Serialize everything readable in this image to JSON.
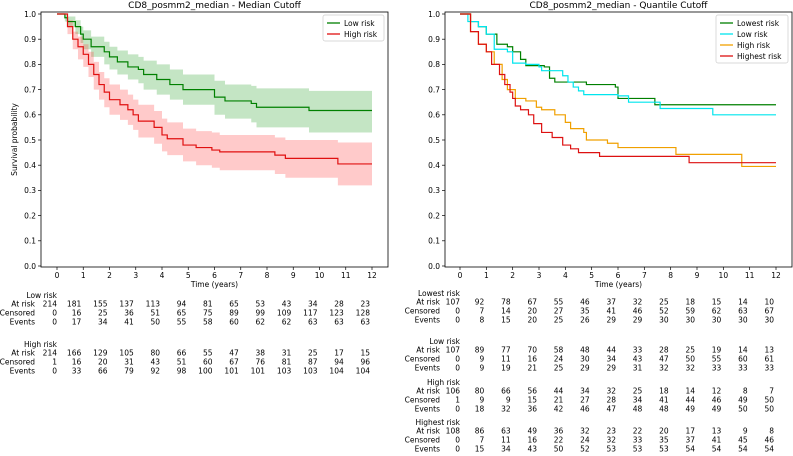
{
  "chart_data": [
    {
      "type": "line",
      "subtype": "kaplan-meier step",
      "title": "CD8_posmm2_median - Median Cutoff",
      "xlabel": "Time (years)",
      "ylabel": "Survival probability",
      "xlim": [
        0,
        12
      ],
      "ylim": [
        0,
        1
      ],
      "xticks": [
        "0",
        "1",
        "2",
        "3",
        "4",
        "5",
        "6",
        "7",
        "8",
        "9",
        "10",
        "11",
        "12"
      ],
      "yticks": [
        "0.0",
        "0.1",
        "0.2",
        "0.3",
        "0.4",
        "0.5",
        "0.6",
        "0.7",
        "0.8",
        "0.9",
        "1.0"
      ],
      "legend_position": "top-right",
      "series": [
        {
          "name": "Low risk",
          "color": "#008000",
          "ci_color": "#2ca02c",
          "steps": [
            [
              0,
              1,
              1,
              1
            ],
            [
              0.3,
              0.985,
              0.97,
              1.0
            ],
            [
              0.4,
              0.97,
              0.95,
              0.99
            ],
            [
              0.7,
              0.95,
              0.92,
              0.975
            ],
            [
              0.9,
              0.92,
              0.885,
              0.95
            ],
            [
              1.0,
              0.9,
              0.86,
              0.935
            ],
            [
              1.3,
              0.87,
              0.83,
              0.91
            ],
            [
              1.8,
              0.85,
              0.8,
              0.89
            ],
            [
              2.0,
              0.83,
              0.78,
              0.87
            ],
            [
              2.3,
              0.81,
              0.76,
              0.855
            ],
            [
              2.7,
              0.79,
              0.74,
              0.84
            ],
            [
              3.1,
              0.78,
              0.725,
              0.83
            ],
            [
              3.3,
              0.76,
              0.7,
              0.815
            ],
            [
              3.8,
              0.74,
              0.68,
              0.8
            ],
            [
              4.3,
              0.72,
              0.66,
              0.78
            ],
            [
              4.8,
              0.7,
              0.64,
              0.76
            ],
            [
              6.0,
              0.67,
              0.6,
              0.735
            ],
            [
              6.4,
              0.655,
              0.585,
              0.72
            ],
            [
              7.4,
              0.645,
              0.57,
              0.715
            ],
            [
              7.6,
              0.63,
              0.55,
              0.705
            ],
            [
              9.6,
              0.617,
              0.53,
              0.695
            ],
            [
              12,
              0.617,
              0.53,
              0.695
            ]
          ]
        },
        {
          "name": "High risk",
          "color": "#e01010",
          "ci_color": "#ff4040",
          "steps": [
            [
              0,
              1,
              1,
              1
            ],
            [
              0.4,
              0.95,
              0.92,
              0.975
            ],
            [
              0.6,
              0.9,
              0.86,
              0.93
            ],
            [
              0.8,
              0.87,
              0.82,
              0.91
            ],
            [
              1.0,
              0.84,
              0.79,
              0.88
            ],
            [
              1.2,
              0.8,
              0.75,
              0.85
            ],
            [
              1.4,
              0.76,
              0.7,
              0.81
            ],
            [
              1.6,
              0.72,
              0.66,
              0.77
            ],
            [
              1.8,
              0.69,
              0.63,
              0.745
            ],
            [
              2.0,
              0.66,
              0.6,
              0.72
            ],
            [
              2.4,
              0.64,
              0.58,
              0.7
            ],
            [
              2.7,
              0.62,
              0.56,
              0.68
            ],
            [
              2.9,
              0.6,
              0.54,
              0.66
            ],
            [
              3.1,
              0.575,
              0.51,
              0.64
            ],
            [
              3.7,
              0.55,
              0.485,
              0.615
            ],
            [
              4.0,
              0.52,
              0.455,
              0.585
            ],
            [
              4.2,
              0.505,
              0.44,
              0.57
            ],
            [
              4.8,
              0.48,
              0.415,
              0.545
            ],
            [
              5.3,
              0.47,
              0.4,
              0.535
            ],
            [
              5.9,
              0.46,
              0.39,
              0.53
            ],
            [
              6.2,
              0.453,
              0.38,
              0.52
            ],
            [
              8.3,
              0.44,
              0.365,
              0.51
            ],
            [
              8.7,
              0.427,
              0.35,
              0.5
            ],
            [
              10.7,
              0.405,
              0.32,
              0.49
            ],
            [
              12,
              0.405,
              0.32,
              0.49
            ]
          ]
        }
      ],
      "risk_table": {
        "row_labels": [
          "At risk",
          "Censored",
          "Events"
        ],
        "groups": [
          {
            "name": "Low risk",
            "at_risk": [
              214,
              181,
              155,
              137,
              113,
              94,
              81,
              65,
              53,
              43,
              34,
              28,
              23
            ],
            "censored": [
              0,
              16,
              25,
              36,
              51,
              65,
              75,
              89,
              99,
              109,
              117,
              123,
              128
            ],
            "events": [
              0,
              17,
              34,
              41,
              50,
              55,
              58,
              60,
              62,
              62,
              63,
              63,
              63
            ]
          },
          {
            "name": "High risk",
            "at_risk": [
              214,
              166,
              129,
              105,
              80,
              66,
              55,
              47,
              38,
              31,
              25,
              17,
              15
            ],
            "censored": [
              1,
              16,
              20,
              31,
              43,
              51,
              60,
              67,
              76,
              81,
              87,
              94,
              96
            ],
            "events": [
              0,
              33,
              66,
              79,
              92,
              98,
              100,
              101,
              101,
              103,
              103,
              104,
              104
            ]
          }
        ]
      }
    },
    {
      "type": "line",
      "subtype": "kaplan-meier step",
      "title": "CD8_posmm2_median - Quantile Cutoff",
      "xlabel": "Time (years)",
      "ylabel": "",
      "xlim": [
        0,
        12
      ],
      "ylim": [
        0,
        1
      ],
      "xticks": [
        "0",
        "1",
        "2",
        "3",
        "4",
        "5",
        "6",
        "7",
        "8",
        "9",
        "10",
        "11",
        "12"
      ],
      "yticks": [
        "0.0",
        "0.1",
        "0.2",
        "0.3",
        "0.4",
        "0.5",
        "0.6",
        "0.7",
        "0.8",
        "0.9",
        "1.0"
      ],
      "legend_position": "top-right",
      "series": [
        {
          "name": "Lowest risk",
          "color": "#008000",
          "steps": [
            [
              0,
              1
            ],
            [
              0.4,
              0.97
            ],
            [
              0.5,
              0.97
            ],
            [
              0.7,
              0.95
            ],
            [
              1.0,
              0.92
            ],
            [
              1.4,
              0.88
            ],
            [
              1.8,
              0.87
            ],
            [
              2.0,
              0.85
            ],
            [
              2.3,
              0.82
            ],
            [
              2.5,
              0.795
            ],
            [
              3.2,
              0.79
            ],
            [
              3.4,
              0.745
            ],
            [
              3.6,
              0.73
            ],
            [
              4.8,
              0.72
            ],
            [
              5.9,
              0.71
            ],
            [
              6.0,
              0.665
            ],
            [
              7.4,
              0.64
            ],
            [
              12,
              0.64
            ]
          ]
        },
        {
          "name": "Low risk",
          "color": "#00e5ee",
          "steps": [
            [
              0,
              1
            ],
            [
              0.3,
              0.97
            ],
            [
              0.7,
              0.95
            ],
            [
              1.0,
              0.92
            ],
            [
              1.3,
              0.86
            ],
            [
              1.8,
              0.85
            ],
            [
              2.0,
              0.805
            ],
            [
              2.5,
              0.8
            ],
            [
              3.0,
              0.79
            ],
            [
              3.1,
              0.775
            ],
            [
              3.9,
              0.755
            ],
            [
              4.1,
              0.73
            ],
            [
              4.3,
              0.71
            ],
            [
              4.5,
              0.695
            ],
            [
              4.7,
              0.68
            ],
            [
              6.0,
              0.675
            ],
            [
              6.4,
              0.65
            ],
            [
              7.6,
              0.625
            ],
            [
              9.6,
              0.6
            ],
            [
              12,
              0.6
            ]
          ]
        },
        {
          "name": "High risk",
          "color": "#f0a000",
          "steps": [
            [
              0,
              1
            ],
            [
              0.4,
              0.93
            ],
            [
              0.7,
              0.88
            ],
            [
              1.0,
              0.85
            ],
            [
              1.3,
              0.8
            ],
            [
              1.6,
              0.74
            ],
            [
              1.8,
              0.7
            ],
            [
              2.1,
              0.665
            ],
            [
              2.5,
              0.655
            ],
            [
              2.9,
              0.63
            ],
            [
              3.1,
              0.62
            ],
            [
              3.6,
              0.6
            ],
            [
              4.0,
              0.57
            ],
            [
              4.2,
              0.545
            ],
            [
              4.7,
              0.53
            ],
            [
              4.8,
              0.5
            ],
            [
              5.6,
              0.487
            ],
            [
              6.0,
              0.47
            ],
            [
              8.2,
              0.443
            ],
            [
              10.7,
              0.395
            ],
            [
              12,
              0.395
            ]
          ]
        },
        {
          "name": "Highest risk",
          "color": "#dd1111",
          "steps": [
            [
              0,
              1
            ],
            [
              0.4,
              0.93
            ],
            [
              0.7,
              0.88
            ],
            [
              1.0,
              0.85
            ],
            [
              1.2,
              0.8
            ],
            [
              1.5,
              0.76
            ],
            [
              1.7,
              0.72
            ],
            [
              1.9,
              0.69
            ],
            [
              2.0,
              0.665
            ],
            [
              2.1,
              0.635
            ],
            [
              2.3,
              0.62
            ],
            [
              2.6,
              0.6
            ],
            [
              2.8,
              0.565
            ],
            [
              3.1,
              0.53
            ],
            [
              3.5,
              0.51
            ],
            [
              3.9,
              0.48
            ],
            [
              4.2,
              0.465
            ],
            [
              4.5,
              0.45
            ],
            [
              5.3,
              0.435
            ],
            [
              8.7,
              0.41
            ],
            [
              12,
              0.41
            ]
          ]
        }
      ],
      "risk_table": {
        "row_labels": [
          "At risk",
          "Censored",
          "Events"
        ],
        "groups": [
          {
            "name": "Lowest risk",
            "at_risk": [
              107,
              92,
              78,
              67,
              55,
              46,
              37,
              32,
              25,
              18,
              15,
              14,
              10
            ],
            "censored": [
              0,
              7,
              14,
              20,
              27,
              35,
              41,
              46,
              52,
              59,
              62,
              63,
              67
            ],
            "events": [
              0,
              8,
              15,
              20,
              25,
              26,
              29,
              29,
              30,
              30,
              30,
              30,
              30
            ]
          },
          {
            "name": "Low risk",
            "at_risk": [
              107,
              89,
              77,
              70,
              58,
              48,
              44,
              33,
              28,
              25,
              19,
              14,
              13
            ],
            "censored": [
              0,
              9,
              11,
              16,
              24,
              30,
              34,
              43,
              47,
              50,
              55,
              60,
              61
            ],
            "events": [
              0,
              9,
              19,
              21,
              25,
              29,
              29,
              31,
              32,
              32,
              33,
              33,
              33
            ]
          },
          {
            "name": "High risk",
            "at_risk": [
              106,
              80,
              66,
              56,
              44,
              34,
              32,
              25,
              18,
              14,
              12,
              8,
              7
            ],
            "censored": [
              1,
              9,
              9,
              15,
              21,
              27,
              28,
              34,
              41,
              44,
              46,
              49,
              50
            ],
            "events": [
              0,
              18,
              32,
              36,
              42,
              46,
              47,
              48,
              48,
              49,
              49,
              50,
              50
            ]
          },
          {
            "name": "Highest risk",
            "at_risk": [
              108,
              86,
              63,
              49,
              36,
              32,
              23,
              22,
              20,
              17,
              13,
              9,
              8
            ],
            "censored": [
              0,
              7,
              11,
              16,
              22,
              24,
              32,
              33,
              35,
              37,
              41,
              45,
              46
            ],
            "events": [
              0,
              15,
              34,
              43,
              50,
              52,
              53,
              53,
              53,
              54,
              54,
              54,
              54
            ]
          }
        ]
      }
    }
  ]
}
